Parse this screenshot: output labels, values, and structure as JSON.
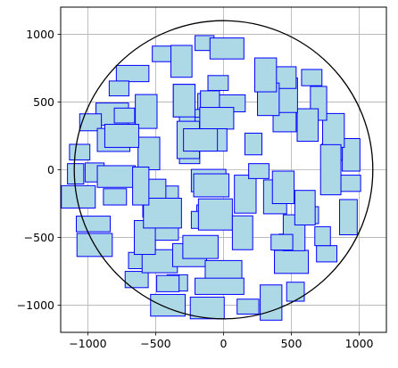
{
  "chart_data": {
    "type": "scatter",
    "title": "",
    "xlabel": "",
    "ylabel": "",
    "xlim": [
      -1200,
      1200
    ],
    "ylim": [
      -1200,
      1200
    ],
    "grid": true,
    "aspect": "equal",
    "x_ticks": [
      -1000,
      -500,
      0,
      500,
      1000
    ],
    "y_ticks": [
      -1000,
      -500,
      0,
      500,
      1000
    ],
    "x_tick_labels": [
      "−1000",
      "−500",
      "0",
      "500",
      "1000"
    ],
    "y_tick_labels": [
      "−1000",
      "−500",
      "0",
      "500",
      "1000"
    ],
    "circle": {
      "center": [
        0,
        0
      ],
      "radius": 1100,
      "color": "#000000"
    },
    "rect_style": {
      "fill": "#add8e6",
      "edge": "#0000ff"
    },
    "rects": [
      [
        -450,
        855,
        150,
        115
      ],
      [
        -310,
        800,
        155,
        235
      ],
      [
        -140,
        935,
        140,
        110
      ],
      [
        25,
        895,
        250,
        155
      ],
      [
        -670,
        710,
        240,
        120
      ],
      [
        -770,
        600,
        145,
        110
      ],
      [
        -570,
        430,
        160,
        250
      ],
      [
        -290,
        510,
        160,
        240
      ],
      [
        -120,
        500,
        140,
        125
      ],
      [
        -40,
        640,
        150,
        110
      ],
      [
        -250,
        245,
        150,
        400
      ],
      [
        -420,
        -320,
        175,
        400
      ],
      [
        -140,
        330,
        140,
        115
      ],
      [
        -820,
        410,
        240,
        165
      ],
      [
        -980,
        350,
        160,
        125
      ],
      [
        -810,
        220,
        240,
        170
      ],
      [
        -550,
        120,
        160,
        240
      ],
      [
        -1090,
        -30,
        120,
        150
      ],
      [
        -1060,
        130,
        150,
        115
      ],
      [
        -950,
        -20,
        140,
        140
      ],
      [
        -790,
        -50,
        280,
        160
      ],
      [
        -800,
        -200,
        170,
        120
      ],
      [
        -1070,
        -200,
        250,
        165
      ],
      [
        -960,
        -400,
        250,
        115
      ],
      [
        -950,
        -555,
        260,
        170
      ],
      [
        -620,
        -670,
        160,
        120
      ],
      [
        -640,
        -810,
        170,
        120
      ],
      [
        -470,
        -675,
        260,
        170
      ],
      [
        -340,
        -835,
        150,
        120
      ],
      [
        -250,
        -630,
        250,
        170
      ],
      [
        -580,
        -500,
        155,
        250
      ],
      [
        -510,
        -210,
        170,
        280
      ],
      [
        -140,
        -330,
        115,
        140
      ],
      [
        -260,
        220,
        165,
        275
      ],
      [
        -290,
        510,
        160,
        240
      ],
      [
        -110,
        -80,
        255,
        165
      ],
      [
        -170,
        -570,
        260,
        170
      ],
      [
        -110,
        -370,
        255,
        125
      ],
      [
        -90,
        -115,
        260,
        170
      ],
      [
        -60,
        -330,
        250,
        230
      ],
      [
        0,
        -750,
        270,
        160
      ],
      [
        -410,
        -840,
        165,
        120
      ],
      [
        -410,
        -1000,
        255,
        160
      ],
      [
        -120,
        -1020,
        250,
        160
      ],
      [
        -30,
        -860,
        360,
        120
      ],
      [
        180,
        -1010,
        160,
        110
      ],
      [
        350,
        -980,
        160,
        260
      ],
      [
        530,
        -900,
        130,
        140
      ],
      [
        490,
        -560,
        160,
        170
      ],
      [
        500,
        -680,
        250,
        170
      ],
      [
        760,
        -620,
        150,
        120
      ],
      [
        730,
        -490,
        115,
        140
      ],
      [
        -450,
        -320,
        280,
        220
      ],
      [
        140,
        -465,
        150,
        250
      ],
      [
        520,
        -465,
        160,
        265
      ],
      [
        430,
        -535,
        160,
        115
      ],
      [
        630,
        -335,
        140,
        125
      ],
      [
        920,
        -350,
        130,
        260
      ],
      [
        930,
        -100,
        160,
        120
      ],
      [
        940,
        110,
        130,
        240
      ],
      [
        800,
        130,
        150,
        120
      ],
      [
        810,
        290,
        160,
        250
      ],
      [
        700,
        490,
        120,
        250
      ],
      [
        450,
        400,
        170,
        240
      ],
      [
        620,
        330,
        155,
        240
      ],
      [
        650,
        680,
        150,
        120
      ],
      [
        470,
        550,
        150,
        255
      ],
      [
        410,
        680,
        250,
        160
      ],
      [
        330,
        520,
        160,
        240
      ],
      [
        310,
        700,
        160,
        250
      ],
      [
        40,
        490,
        240,
        125
      ],
      [
        -100,
        520,
        140,
        125
      ],
      [
        -50,
        380,
        250,
        160
      ],
      [
        220,
        190,
        125,
        160
      ],
      [
        -100,
        220,
        250,
        165
      ],
      [
        160,
        -180,
        160,
        280
      ],
      [
        380,
        -200,
        170,
        250
      ],
      [
        440,
        -130,
        160,
        240
      ],
      [
        600,
        -280,
        150,
        255
      ],
      [
        260,
        -10,
        150,
        110
      ],
      [
        790,
        0,
        150,
        370
      ],
      [
        -750,
        250,
        250,
        170
      ],
      [
        -170,
        220,
        250,
        165
      ],
      [
        -730,
        400,
        150,
        110
      ],
      [
        -610,
        -120,
        120,
        280
      ]
    ]
  }
}
